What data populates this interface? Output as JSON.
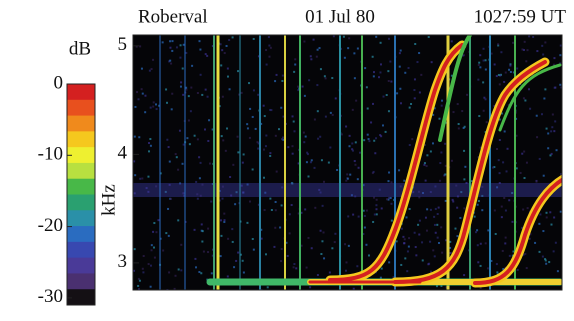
{
  "chart_data": {
    "type": "spectrogram",
    "title_left": "Roberval",
    "title_center": "01 Jul 80",
    "title_right": "1027:59 UT",
    "ylabel": "kHz",
    "ylim": [
      2.75,
      5.1
    ],
    "yticks": [
      3,
      4,
      5
    ],
    "colorbar_label": "dB",
    "clim": [
      -31,
      0
    ],
    "colorbar_ticks": [
      0,
      -10,
      -20,
      -30
    ],
    "colormap": [
      "#d42020",
      "#e8501e",
      "#f08a1c",
      "#f5c81e",
      "#eef030",
      "#b8e040",
      "#48b848",
      "#2aa070",
      "#2a90a8",
      "#2a6cc0",
      "#3848b0",
      "#4a3a98",
      "#4a3070",
      "#141014"
    ]
  }
}
